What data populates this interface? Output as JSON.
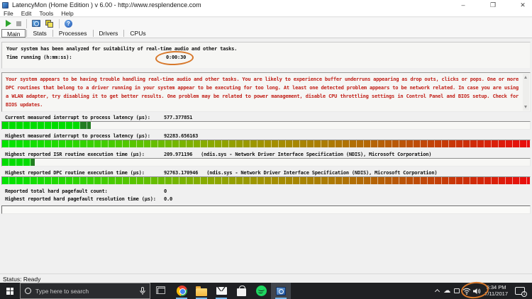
{
  "window": {
    "title": "LatencyMon  (Home Edition )  v 6.00 - http://www.resplendence.com",
    "controls": {
      "minimize": "–",
      "maximize": "❐",
      "close": "✕"
    }
  },
  "menu": {
    "items": [
      "File",
      "Edit",
      "Tools",
      "Help"
    ]
  },
  "toolbar": {
    "icons": [
      "play-icon",
      "stop-icon",
      "monitor-analyze-icon",
      "copy-report-icon",
      "help-icon"
    ]
  },
  "tabs": [
    {
      "label": "Main"
    },
    {
      "label": "Stats"
    },
    {
      "label": "Processes"
    },
    {
      "label": "Drivers"
    },
    {
      "label": "CPUs"
    }
  ],
  "main": {
    "intro": "Your system has been analyzed for suitability of real-time audio and other tasks.",
    "time_label": "Time running (h:mm:ss):",
    "time_value": "0:00:30",
    "warning": "Your system appears to be having trouble handling real-time audio and other tasks. You are likely to experience buffer underruns appearing as drop outs, clicks or pops. One or more DPC routines that belong to a driver running in your system appear to be executing for too long. At least one detected problem appears to be network related. In case you are using a WLAN adapter, try disabling it to get better results. One problem may be related to power management, disable CPU throttling settings in Control Panel and BIOS setup. Check for BIOS updates.",
    "rows": [
      {
        "label": "Current measured interrupt to process latency (µs):",
        "value": "577.377851",
        "info": "",
        "bar": {
          "kind": "green",
          "fill_pct": 16.8
        }
      },
      {
        "label": "Highest measured interrupt to process latency (µs):",
        "value": "92283.656163",
        "info": "",
        "bar": {
          "kind": "gradient",
          "fill_pct": 100
        }
      },
      {
        "label": "Highest reported ISR routine execution time (µs):",
        "value": "209.971196",
        "info": "(ndis.sys - Network Driver Interface Specification (NDIS), Microsoft Corporation)",
        "bar": {
          "kind": "green",
          "fill_pct": 6.2
        }
      },
      {
        "label": "Highest reported DPC routine execution time (µs):",
        "value": "92763.170946",
        "info": "(ndis.sys - Network Driver Interface Specification (NDIS), Microsoft Corporation)",
        "bar": {
          "kind": "gradient",
          "fill_pct": 100
        }
      },
      {
        "label": "Reported total hard pagefault count:",
        "value": "0",
        "info": "",
        "bar": null
      },
      {
        "label": "Highest reported hard pagefault resolution time (µs):",
        "value": "0.0",
        "info": "",
        "bar": null
      },
      {
        "label": "",
        "value": "",
        "info": "",
        "bar": {
          "kind": "empty",
          "fill_pct": 0
        }
      }
    ]
  },
  "statusbar": {
    "text": "Status: Ready"
  },
  "taskbar": {
    "search_placeholder": "Type here to search",
    "icons": [
      "start-icon",
      "cortana-icon",
      "microphone-icon",
      "task-view-icon",
      "chrome-icon",
      "file-explorer-icon",
      "mail-icon",
      "store-icon",
      "spotify-icon",
      "latencymon-icon",
      "tray-expand-icon",
      "onedrive-cloud-icon",
      "device-icon",
      "wifi-icon",
      "volume-icon",
      "action-center-icon"
    ],
    "clock": {
      "time": "5:34 PM",
      "date": "7/11/2017"
    },
    "notification_count": "1"
  },
  "colors": {
    "annotation": "#d7782b",
    "warning_text": "#c22018",
    "bar_green": "#00dc00",
    "bar_red": "#ea0d0d",
    "taskbar_bg": "#1f2023"
  }
}
